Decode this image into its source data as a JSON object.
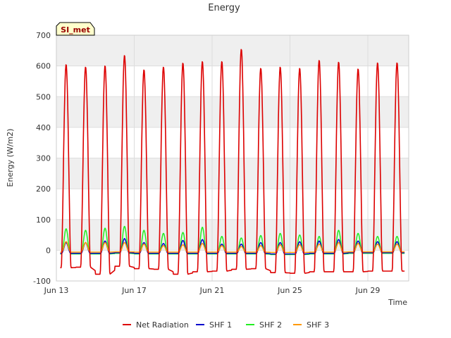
{
  "chart_data": {
    "type": "line",
    "title": "Energy",
    "xlabel": "Time",
    "ylabel": "Energy (W/m2)",
    "badge": "SI_met",
    "x_start": "2024-06-13",
    "x_end": "2024-06-30 18:00",
    "xlim_days": [
      0,
      18.1
    ],
    "ylim": [
      -100,
      700
    ],
    "yticks": [
      -100,
      0,
      100,
      200,
      300,
      400,
      500,
      600,
      700
    ],
    "xticks": [
      {
        "day": 0,
        "label": "Jun 13"
      },
      {
        "day": 4,
        "label": "Jun 17"
      },
      {
        "day": 8,
        "label": "Jun 21"
      },
      {
        "day": 12,
        "label": "Jun 25"
      },
      {
        "day": 16,
        "label": "Jun 29"
      }
    ],
    "grid": true,
    "legend_position": "bottom",
    "series": [
      {
        "name": "Net Radiation",
        "color": "#dd0000",
        "daily_peak": [
          605,
          597,
          601,
          635,
          588,
          597,
          610,
          615,
          615,
          655,
          593,
          597,
          593,
          619,
          613,
          591,
          611
        ],
        "night_value": [
          -57,
          -55,
          -78,
          -52,
          -60,
          -62,
          -78,
          -70,
          -68,
          -62,
          -60,
          -73,
          -75,
          -70,
          -70,
          -70,
          -68
        ]
      },
      {
        "name": "SHF 1",
        "color": "#0000cc",
        "daily_peak": [
          25,
          25,
          30,
          38,
          25,
          22,
          32,
          35,
          20,
          20,
          25,
          25,
          28,
          30,
          35,
          30,
          28
        ],
        "night_value": [
          -10,
          -10,
          -10,
          -8,
          -10,
          -10,
          -10,
          -10,
          -10,
          -10,
          -10,
          -12,
          -12,
          -10,
          -10,
          -8,
          -8
        ]
      },
      {
        "name": "SHF 2",
        "color": "#22ee22",
        "daily_peak": [
          70,
          65,
          72,
          78,
          65,
          55,
          58,
          75,
          45,
          40,
          48,
          55,
          50,
          45,
          65,
          55,
          45
        ],
        "night_value": [
          -12,
          -12,
          -12,
          -10,
          -12,
          -12,
          -12,
          -12,
          -12,
          -12,
          -12,
          -14,
          -14,
          -12,
          -12,
          -10,
          -10
        ]
      },
      {
        "name": "SHF 3",
        "color": "#ff9900",
        "daily_peak": [
          28,
          25,
          25,
          25,
          20,
          15,
          18,
          22,
          15,
          12,
          15,
          18,
          18,
          20,
          25,
          22,
          20
        ],
        "night_value": [
          -6,
          -6,
          -6,
          -5,
          -6,
          -6,
          -6,
          -6,
          -6,
          -6,
          -6,
          -7,
          -7,
          -6,
          -6,
          -5,
          -5
        ]
      }
    ]
  }
}
